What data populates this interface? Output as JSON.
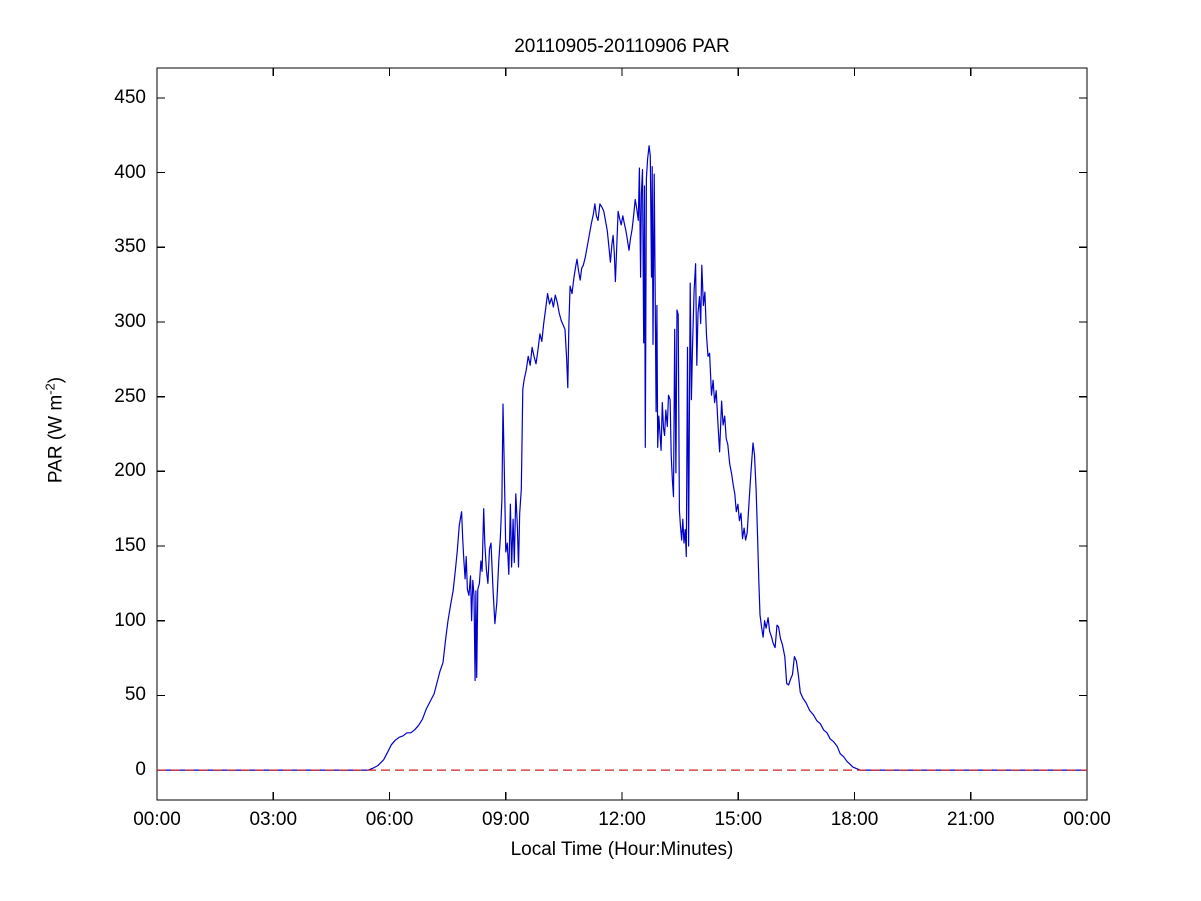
{
  "chart": {
    "title": "20110905-20110906 PAR",
    "xlabel": "Local Time (Hour:Minutes)",
    "ylabel_parts": {
      "pre": "PAR (W m",
      "sup": "-2",
      "post": ")"
    }
  },
  "chart_data": {
    "type": "line",
    "title": "20110905-20110906 PAR",
    "xlabel": "Local Time (Hour:Minutes)",
    "ylabel": "PAR (W m⁻²)",
    "xlim_hours": [
      0,
      24
    ],
    "ylim": [
      -20,
      470
    ],
    "grid": false,
    "legend": "none",
    "x_ticks": {
      "hours": [
        0,
        3,
        6,
        9,
        12,
        15,
        18,
        21,
        24
      ],
      "labels": [
        "00:00",
        "03:00",
        "06:00",
        "09:00",
        "12:00",
        "15:00",
        "18:00",
        "21:00",
        "00:00"
      ]
    },
    "y_ticks": [
      0,
      50,
      100,
      150,
      200,
      250,
      300,
      350,
      400,
      450
    ],
    "colors": {
      "axes": "#000000",
      "text": "#000000"
    },
    "series": [
      {
        "name": "par",
        "color": "#0000CC",
        "style": "solid",
        "points_hour_value": [
          [
            0,
            0
          ],
          [
            0.5,
            0
          ],
          [
            1,
            0
          ],
          [
            1.5,
            0
          ],
          [
            2,
            0
          ],
          [
            2.5,
            0
          ],
          [
            3,
            0
          ],
          [
            3.5,
            0
          ],
          [
            4,
            0
          ],
          [
            4.5,
            0
          ],
          [
            5,
            0
          ],
          [
            5.3,
            0
          ],
          [
            5.45,
            0
          ],
          [
            5.55,
            1
          ],
          [
            5.7,
            3
          ],
          [
            5.85,
            7
          ],
          [
            5.95,
            12
          ],
          [
            6.05,
            17
          ],
          [
            6.15,
            20
          ],
          [
            6.25,
            22
          ],
          [
            6.35,
            23
          ],
          [
            6.45,
            25
          ],
          [
            6.55,
            25
          ],
          [
            6.65,
            27
          ],
          [
            6.75,
            30
          ],
          [
            6.85,
            34
          ],
          [
            6.95,
            41
          ],
          [
            7.05,
            46
          ],
          [
            7.15,
            51
          ],
          [
            7.22,
            58
          ],
          [
            7.3,
            66
          ],
          [
            7.38,
            72
          ],
          [
            7.45,
            88
          ],
          [
            7.51,
            100
          ],
          [
            7.58,
            111
          ],
          [
            7.64,
            120
          ],
          [
            7.7,
            134
          ],
          [
            7.75,
            147
          ],
          [
            7.8,
            164
          ],
          [
            7.86,
            173
          ],
          [
            7.89,
            155
          ],
          [
            7.92,
            140
          ],
          [
            7.95,
            128
          ],
          [
            7.98,
            143
          ],
          [
            8.01,
            121
          ],
          [
            8.05,
            117
          ],
          [
            8.09,
            130
          ],
          [
            8.12,
            100
          ],
          [
            8.15,
            127
          ],
          [
            8.18,
            117
          ],
          [
            8.21,
            60
          ],
          [
            8.23,
            120
          ],
          [
            8.25,
            62
          ],
          [
            8.28,
            121
          ],
          [
            8.32,
            125
          ],
          [
            8.36,
            140
          ],
          [
            8.39,
            133
          ],
          [
            8.43,
            175
          ],
          [
            8.46,
            152
          ],
          [
            8.5,
            134
          ],
          [
            8.54,
            125
          ],
          [
            8.58,
            148
          ],
          [
            8.62,
            152
          ],
          [
            8.67,
            121
          ],
          [
            8.72,
            98
          ],
          [
            8.77,
            112
          ],
          [
            8.82,
            140
          ],
          [
            8.86,
            155
          ],
          [
            8.9,
            181
          ],
          [
            8.93,
            245
          ],
          [
            8.96,
            205
          ],
          [
            9,
            146
          ],
          [
            9.04,
            152
          ],
          [
            9.08,
            131
          ],
          [
            9.12,
            178
          ],
          [
            9.15,
            136
          ],
          [
            9.19,
            168
          ],
          [
            9.22,
            139
          ],
          [
            9.26,
            185
          ],
          [
            9.3,
            163
          ],
          [
            9.33,
            136
          ],
          [
            9.36,
            172
          ],
          [
            9.4,
            188
          ],
          [
            9.44,
            255
          ],
          [
            9.48,
            262
          ],
          [
            9.53,
            268
          ],
          [
            9.58,
            277
          ],
          [
            9.63,
            271
          ],
          [
            9.68,
            283
          ],
          [
            9.73,
            277
          ],
          [
            9.78,
            272
          ],
          [
            9.83,
            281
          ],
          [
            9.88,
            292
          ],
          [
            9.93,
            287
          ],
          [
            9.98,
            299
          ],
          [
            10.03,
            309
          ],
          [
            10.08,
            319
          ],
          [
            10.13,
            312
          ],
          [
            10.18,
            316
          ],
          [
            10.23,
            310
          ],
          [
            10.28,
            318
          ],
          [
            10.33,
            313
          ],
          [
            10.38,
            306
          ],
          [
            10.43,
            301
          ],
          [
            10.48,
            298
          ],
          [
            10.53,
            295
          ],
          [
            10.57,
            276
          ],
          [
            10.6,
            256
          ],
          [
            10.63,
            299
          ],
          [
            10.66,
            324
          ],
          [
            10.71,
            319
          ],
          [
            10.76,
            330
          ],
          [
            10.81,
            338
          ],
          [
            10.84,
            342
          ],
          [
            10.88,
            334
          ],
          [
            10.92,
            328
          ],
          [
            10.96,
            336
          ],
          [
            11,
            338
          ],
          [
            11.05,
            343
          ],
          [
            11.1,
            350
          ],
          [
            11.16,
            359
          ],
          [
            11.21,
            366
          ],
          [
            11.26,
            372
          ],
          [
            11.3,
            379
          ],
          [
            11.34,
            371
          ],
          [
            11.38,
            368
          ],
          [
            11.43,
            379
          ],
          [
            11.48,
            377
          ],
          [
            11.53,
            374
          ],
          [
            11.58,
            367
          ],
          [
            11.62,
            361
          ],
          [
            11.66,
            351
          ],
          [
            11.7,
            340
          ],
          [
            11.74,
            352
          ],
          [
            11.77,
            358
          ],
          [
            11.8,
            346
          ],
          [
            11.83,
            327
          ],
          [
            11.87,
            355
          ],
          [
            11.9,
            374
          ],
          [
            11.94,
            369
          ],
          [
            11.98,
            365
          ],
          [
            12.02,
            371
          ],
          [
            12.06,
            366
          ],
          [
            12.1,
            361
          ],
          [
            12.14,
            355
          ],
          [
            12.18,
            348
          ],
          [
            12.22,
            356
          ],
          [
            12.26,
            362
          ],
          [
            12.3,
            371
          ],
          [
            12.34,
            382
          ],
          [
            12.38,
            376
          ],
          [
            12.42,
            368
          ],
          [
            12.45,
            403
          ],
          [
            12.48,
            330
          ],
          [
            12.5,
            386
          ],
          [
            12.53,
            402
          ],
          [
            12.56,
            286
          ],
          [
            12.58,
            391
          ],
          [
            12.6,
            216
          ],
          [
            12.63,
            396
          ],
          [
            12.66,
            409
          ],
          [
            12.7,
            418
          ],
          [
            12.73,
            411
          ],
          [
            12.76,
            330
          ],
          [
            12.78,
            404
          ],
          [
            12.8,
            285
          ],
          [
            12.83,
            399
          ],
          [
            12.85,
            343
          ],
          [
            12.88,
            240
          ],
          [
            12.9,
            311
          ],
          [
            12.92,
            216
          ],
          [
            12.95,
            237
          ],
          [
            12.98,
            225
          ],
          [
            13.01,
            214
          ],
          [
            13.04,
            246
          ],
          [
            13.07,
            229
          ],
          [
            13.1,
            224
          ],
          [
            13.13,
            241
          ],
          [
            13.17,
            230
          ],
          [
            13.2,
            251
          ],
          [
            13.24,
            248
          ],
          [
            13.27,
            211
          ],
          [
            13.3,
            194
          ],
          [
            13.33,
            183
          ],
          [
            13.36,
            295
          ],
          [
            13.39,
            199
          ],
          [
            13.42,
            308
          ],
          [
            13.45,
            305
          ],
          [
            13.48,
            174
          ],
          [
            13.51,
            163
          ],
          [
            13.54,
            154
          ],
          [
            13.57,
            168
          ],
          [
            13.6,
            152
          ],
          [
            13.63,
            161
          ],
          [
            13.66,
            143
          ],
          [
            13.69,
            283
          ],
          [
            13.72,
            150
          ],
          [
            13.76,
            326
          ],
          [
            13.79,
            248
          ],
          [
            13.82,
            283
          ],
          [
            13.86,
            321
          ],
          [
            13.9,
            339
          ],
          [
            13.93,
            271
          ],
          [
            13.96,
            306
          ],
          [
            14,
            317
          ],
          [
            14.03,
            299
          ],
          [
            14.06,
            338
          ],
          [
            14.1,
            311
          ],
          [
            14.14,
            320
          ],
          [
            14.18,
            291
          ],
          [
            14.22,
            277
          ],
          [
            14.26,
            279
          ],
          [
            14.31,
            251
          ],
          [
            14.35,
            261
          ],
          [
            14.39,
            246
          ],
          [
            14.43,
            254
          ],
          [
            14.47,
            235
          ],
          [
            14.52,
            213
          ],
          [
            14.57,
            247
          ],
          [
            14.61,
            231
          ],
          [
            14.65,
            237
          ],
          [
            14.69,
            222
          ],
          [
            14.73,
            218
          ],
          [
            14.78,
            205
          ],
          [
            14.83,
            198
          ],
          [
            14.87,
            191
          ],
          [
            14.91,
            185
          ],
          [
            14.95,
            173
          ],
          [
            14.99,
            178
          ],
          [
            15.03,
            167
          ],
          [
            15.07,
            172
          ],
          [
            15.11,
            155
          ],
          [
            15.15,
            162
          ],
          [
            15.19,
            154
          ],
          [
            15.23,
            159
          ],
          [
            15.28,
            180
          ],
          [
            15.33,
            200
          ],
          [
            15.38,
            219
          ],
          [
            15.42,
            211
          ],
          [
            15.46,
            188
          ],
          [
            15.5,
            156
          ],
          [
            15.53,
            127
          ],
          [
            15.56,
            104
          ],
          [
            15.6,
            96
          ],
          [
            15.64,
            89
          ],
          [
            15.68,
            100
          ],
          [
            15.72,
            95
          ],
          [
            15.77,
            102
          ],
          [
            15.81,
            93
          ],
          [
            15.86,
            89
          ],
          [
            15.9,
            85
          ],
          [
            15.95,
            82
          ],
          [
            16,
            97
          ],
          [
            16.04,
            96
          ],
          [
            16.09,
            88
          ],
          [
            16.14,
            84
          ],
          [
            16.2,
            76
          ],
          [
            16.25,
            58
          ],
          [
            16.3,
            57
          ],
          [
            16.35,
            61
          ],
          [
            16.4,
            64
          ],
          [
            16.45,
            76
          ],
          [
            16.5,
            73
          ],
          [
            16.55,
            64
          ],
          [
            16.6,
            52
          ],
          [
            16.67,
            48
          ],
          [
            16.75,
            45
          ],
          [
            16.84,
            40
          ],
          [
            16.94,
            37
          ],
          [
            17.03,
            33
          ],
          [
            17.12,
            31
          ],
          [
            17.2,
            27
          ],
          [
            17.29,
            25
          ],
          [
            17.37,
            21
          ],
          [
            17.46,
            19
          ],
          [
            17.55,
            16
          ],
          [
            17.63,
            11
          ],
          [
            17.72,
            9
          ],
          [
            17.8,
            6
          ],
          [
            17.88,
            4
          ],
          [
            17.96,
            2
          ],
          [
            18.05,
            1
          ],
          [
            18.15,
            0
          ],
          [
            18.3,
            0
          ],
          [
            18.6,
            0
          ],
          [
            19,
            0
          ],
          [
            19.5,
            0
          ],
          [
            20,
            0
          ],
          [
            20.5,
            0
          ],
          [
            21,
            0
          ],
          [
            21.5,
            0
          ],
          [
            22,
            0
          ],
          [
            22.5,
            0
          ],
          [
            23,
            0
          ],
          [
            23.5,
            0
          ],
          [
            24,
            0
          ]
        ]
      },
      {
        "name": "zero-reference",
        "color": "#CC2222",
        "style": "dashed",
        "points_hour_value": [
          [
            0,
            0
          ],
          [
            24,
            0
          ]
        ]
      }
    ]
  }
}
